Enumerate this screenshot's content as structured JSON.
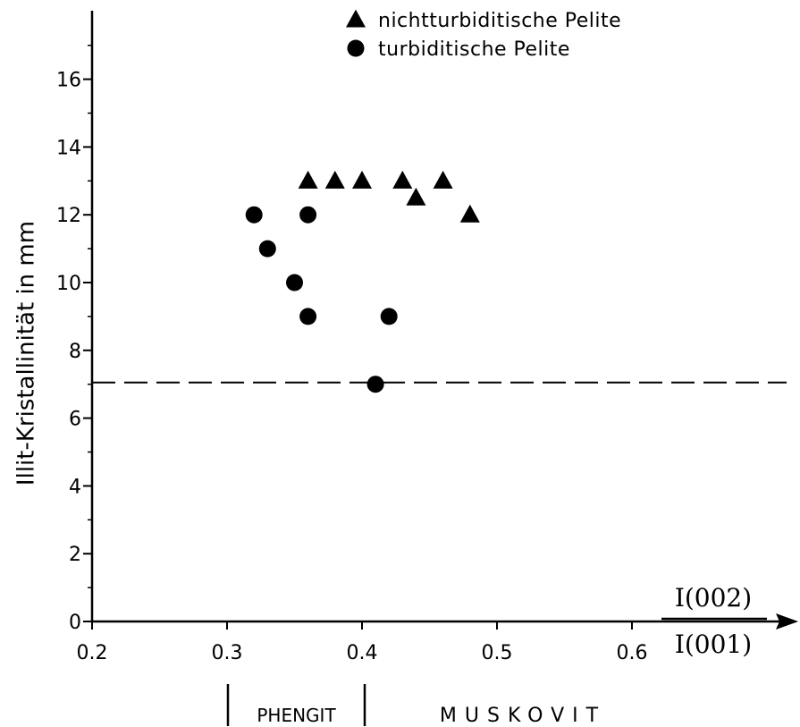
{
  "chart_data": {
    "type": "scatter",
    "xlim": [
      0.2,
      0.65
    ],
    "ylim": [
      0,
      17
    ],
    "x_ticks": [
      "0.2",
      "0.3",
      "0.4",
      "0.5",
      "0.6"
    ],
    "x_tick_values": [
      0.2,
      0.3,
      0.4,
      0.5,
      0.6
    ],
    "y_ticks": [
      "0",
      "2",
      "4",
      "6",
      "8",
      "10",
      "12",
      "14",
      "16"
    ],
    "y_tick_values": [
      0,
      2,
      4,
      6,
      8,
      10,
      12,
      14,
      16
    ],
    "ylabel": "Illit-Kristallinität in mm",
    "xlabel_numerator": "I(002)",
    "xlabel_denominator": "I(001)",
    "legend_position": "top-right",
    "series": [
      {
        "name": "nichtturbiditische Pelite",
        "marker": "triangle",
        "x": [
          0.36,
          0.38,
          0.4,
          0.43,
          0.44,
          0.46,
          0.48
        ],
        "y": [
          13,
          13,
          13,
          13,
          12.5,
          13,
          12
        ]
      },
      {
        "name": "turbiditische Pelite",
        "marker": "circle",
        "x": [
          0.32,
          0.33,
          0.35,
          0.36,
          0.36,
          0.41,
          0.42
        ],
        "y": [
          12,
          11,
          10,
          12,
          9,
          7,
          9
        ]
      }
    ],
    "reference_line": {
      "y": 7,
      "style": "dashed"
    },
    "zones": [
      {
        "label": "PHENGIT",
        "from": 0.3,
        "to": 0.4
      },
      {
        "label": "MUSKOVIT",
        "from": 0.4,
        "to": 0.65
      }
    ],
    "grid": false
  }
}
